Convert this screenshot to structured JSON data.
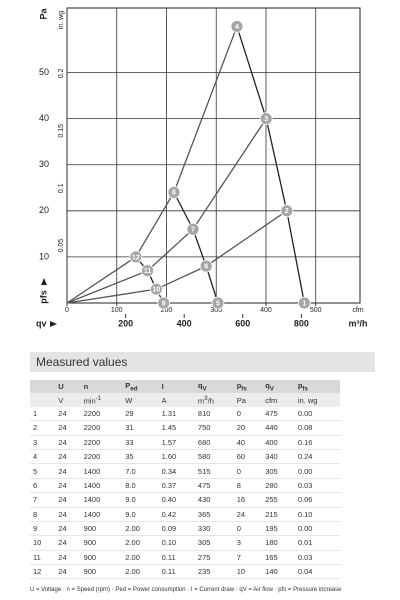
{
  "chart_data": {
    "type": "line",
    "y_label": "Pa",
    "y2_label": "in. wg",
    "x_label": "m³/h",
    "x2_label": "cfm",
    "x_symbol": "qv",
    "y_symbol": "pfs",
    "xlim": [
      0,
      1000
    ],
    "xticks": [
      200,
      400,
      600,
      800
    ],
    "x2lim": [
      0,
      589
    ],
    "x2ticks": [
      0,
      100,
      200,
      300,
      400,
      500
    ],
    "ylim": [
      0,
      64
    ],
    "yticks": [
      10,
      20,
      30,
      40,
      50
    ],
    "y2lim": [
      0,
      0.257
    ],
    "y2ticks": [
      0.05,
      0.1,
      0.15,
      0.2
    ],
    "grid": true,
    "series": [
      {
        "color": "#222222",
        "marker": true,
        "x": [
          810,
          750,
          680,
          580
        ],
        "values": [
          0,
          20,
          40,
          60
        ],
        "point_labels": [
          "1",
          "2",
          "3",
          "4"
        ]
      },
      {
        "color": "#222222",
        "marker": true,
        "x": [
          515,
          475,
          430,
          365
        ],
        "values": [
          0,
          8,
          16,
          24
        ],
        "point_labels": [
          "5",
          "6",
          "7",
          "8"
        ]
      },
      {
        "color": "#222222",
        "marker": true,
        "x": [
          330,
          305,
          275,
          235
        ],
        "values": [
          0,
          3,
          7,
          10
        ],
        "point_labels": [
          "9",
          "10",
          "11",
          "12"
        ]
      },
      {
        "color": "#555555",
        "marker": false,
        "x": [
          0,
          305,
          475,
          750
        ],
        "values": [
          0,
          3,
          8,
          20
        ]
      },
      {
        "color": "#555555",
        "marker": false,
        "x": [
          0,
          275,
          430,
          680
        ],
        "values": [
          0,
          7,
          16,
          40
        ]
      },
      {
        "color": "#555555",
        "marker": false,
        "x": [
          0,
          235,
          365,
          580
        ],
        "values": [
          0,
          10,
          24,
          60
        ]
      }
    ]
  },
  "table": {
    "title": "Measured values",
    "header": [
      {
        "text": "U"
      },
      {
        "text": "n"
      },
      {
        "text": "P",
        "sub": "ed"
      },
      {
        "text": "I"
      },
      {
        "text": "q",
        "sub": "V"
      },
      {
        "text": "p",
        "sub": "fs"
      },
      {
        "text": "q",
        "sub": "V"
      },
      {
        "text": "p",
        "sub": "fs"
      }
    ],
    "units": [
      {
        "text": "V"
      },
      {
        "text": "min",
        "sup": "-1"
      },
      {
        "text": "W"
      },
      {
        "text": "A"
      },
      {
        "text": "m",
        "sup": "3",
        "after": "/h"
      },
      {
        "text": "Pa"
      },
      {
        "text": "cfm"
      },
      {
        "text": "in. wg"
      }
    ],
    "rows": [
      [
        "1",
        "24",
        "2200",
        "29",
        "1.31",
        "810",
        "0",
        "475",
        "0.00"
      ],
      [
        "2",
        "24",
        "2200",
        "31",
        "1.45",
        "750",
        "20",
        "440",
        "0.08"
      ],
      [
        "3",
        "24",
        "2200",
        "33",
        "1.57",
        "680",
        "40",
        "400",
        "0.16"
      ],
      [
        "4",
        "24",
        "2200",
        "35",
        "1.60",
        "580",
        "60",
        "340",
        "0.24"
      ],
      [
        "5",
        "24",
        "1400",
        "7.0",
        "0.34",
        "515",
        "0",
        "305",
        "0.00"
      ],
      [
        "6",
        "24",
        "1400",
        "8.0",
        "0.37",
        "475",
        "8",
        "280",
        "0.03"
      ],
      [
        "7",
        "24",
        "1400",
        "9.0",
        "0.40",
        "430",
        "16",
        "255",
        "0.06"
      ],
      [
        "8",
        "24",
        "1400",
        "9.0",
        "0.42",
        "365",
        "24",
        "215",
        "0.10"
      ],
      [
        "9",
        "24",
        "900",
        "2.00",
        "0.09",
        "330",
        "0",
        "195",
        "0.00"
      ],
      [
        "10",
        "24",
        "900",
        "2.00",
        "0.10",
        "305",
        "3",
        "180",
        "0.01"
      ],
      [
        "11",
        "24",
        "900",
        "2.00",
        "0.11",
        "275",
        "7",
        "165",
        "0.03"
      ],
      [
        "12",
        "24",
        "900",
        "2.00",
        "0.11",
        "235",
        "10",
        "140",
        "0.04"
      ]
    ],
    "footnote": "U = Voltage · n = Speed (rpm) · Ped = Power consumption · I = Current draw · qV = Air flow · pfs = Pressure increase"
  }
}
